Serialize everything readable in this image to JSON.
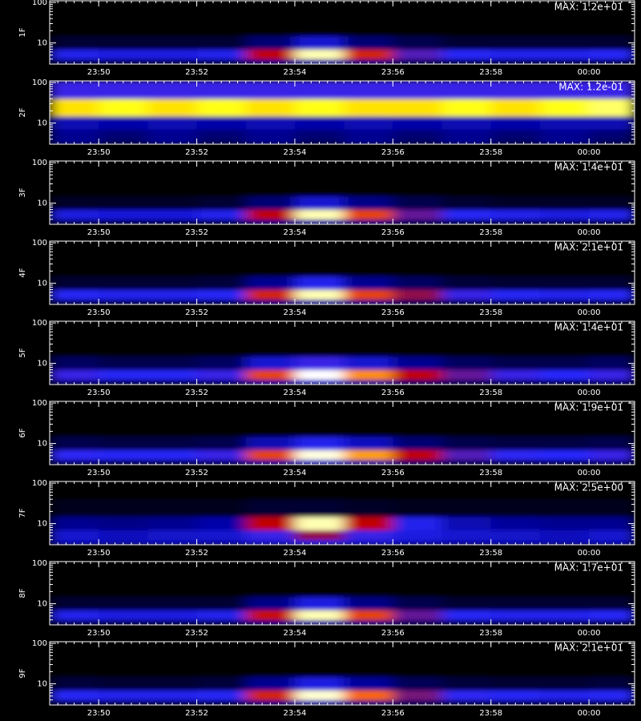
{
  "chart_data": [
    {
      "type": "heatmap",
      "ylabel": "1F",
      "annotation": "MAX: 1.2e+01",
      "xlim": [
        49,
        60.93
      ],
      "ylim": [
        3,
        110
      ],
      "ylog": true,
      "xticks": [
        {
          "value": 50,
          "label": "23:50"
        },
        {
          "value": 52,
          "label": "23:52"
        },
        {
          "value": 54,
          "label": "23:54"
        },
        {
          "value": 56,
          "label": "23:56"
        },
        {
          "value": 58,
          "label": "23:58"
        },
        {
          "value": 60,
          "label": "00:00"
        }
      ],
      "yticks": [
        10,
        100
      ],
      "xbins": [
        49,
        50,
        51,
        52,
        53,
        54,
        55,
        56,
        57,
        58,
        59,
        60,
        60.93
      ],
      "ybins": [
        3,
        4,
        7,
        15,
        40,
        110
      ],
      "colorscale": [
        "#000000",
        "#0000a0",
        "#2828ff",
        "#c00000",
        "#ff7000",
        "#ffff00",
        "#ffffff"
      ],
      "z": [
        [
          0.1,
          0.1,
          0.1,
          0.1,
          0.15,
          0.2,
          0.15,
          0.1,
          0.1,
          0.1,
          0.1,
          0.1
        ],
        [
          0.3,
          0.28,
          0.28,
          0.3,
          0.5,
          0.95,
          0.55,
          0.38,
          0.32,
          0.3,
          0.3,
          0.32
        ],
        [
          0.05,
          0.05,
          0.05,
          0.05,
          0.12,
          0.25,
          0.12,
          0.08,
          0.05,
          0.05,
          0.05,
          0.05
        ],
        [
          0,
          0,
          0,
          0,
          0,
          0,
          0,
          0,
          0,
          0,
          0,
          0
        ],
        [
          0,
          0,
          0,
          0,
          0,
          0,
          0,
          0,
          0,
          0,
          0,
          0
        ]
      ]
    },
    {
      "type": "heatmap",
      "ylabel": "2F",
      "annotation": "MAX: 1.2e-01",
      "xlim": [
        49,
        60.93
      ],
      "ylim": [
        3,
        110
      ],
      "ylog": true,
      "xticks": [
        {
          "value": 50,
          "label": "23:50"
        },
        {
          "value": 52,
          "label": "23:52"
        },
        {
          "value": 54,
          "label": "23:54"
        },
        {
          "value": 56,
          "label": "23:56"
        },
        {
          "value": 58,
          "label": "23:58"
        },
        {
          "value": 60,
          "label": "00:00"
        }
      ],
      "yticks": [
        10,
        100
      ],
      "xbins": [
        49,
        50,
        51,
        52,
        53,
        54,
        55,
        56,
        57,
        58,
        59,
        60,
        60.93
      ],
      "ybins": [
        3,
        4,
        7,
        15,
        40,
        110
      ],
      "colorscale": [
        "#000000",
        "#0000a0",
        "#2828ff",
        "#c00000",
        "#ff7000",
        "#ffff00",
        "#ffffff"
      ],
      "z": [
        [
          0.15,
          0.1,
          0.15,
          0.1,
          0.15,
          0.1,
          0.15,
          0.1,
          0.15,
          0.1,
          0.15,
          0.1
        ],
        [
          0.15,
          0.12,
          0.15,
          0.12,
          0.15,
          0.12,
          0.15,
          0.12,
          0.15,
          0.12,
          0.15,
          0.12
        ],
        [
          0.2,
          0.18,
          0.2,
          0.18,
          0.2,
          0.18,
          0.2,
          0.18,
          0.2,
          0.18,
          0.2,
          0.2
        ],
        [
          0.8,
          0.85,
          0.8,
          0.85,
          0.8,
          0.85,
          0.8,
          0.8,
          0.85,
          0.8,
          0.85,
          0.9
        ],
        [
          0.35,
          0.35,
          0.35,
          0.35,
          0.35,
          0.35,
          0.35,
          0.35,
          0.35,
          0.35,
          0.35,
          0.35
        ]
      ]
    },
    {
      "type": "heatmap",
      "ylabel": "3F",
      "annotation": "MAX: 1.4e+01",
      "xlim": [
        49,
        60.93
      ],
      "ylim": [
        3,
        110
      ],
      "ylog": true,
      "xticks": [
        {
          "value": 50,
          "label": "23:50"
        },
        {
          "value": 52,
          "label": "23:52"
        },
        {
          "value": 54,
          "label": "23:54"
        },
        {
          "value": 56,
          "label": "23:56"
        },
        {
          "value": 58,
          "label": "23:58"
        },
        {
          "value": 60,
          "label": "00:00"
        }
      ],
      "yticks": [
        10,
        100
      ],
      "xbins": [
        49,
        50,
        51,
        52,
        53,
        54,
        55,
        56,
        57,
        58,
        59,
        60,
        60.93
      ],
      "ybins": [
        3,
        4,
        7,
        15,
        40,
        110
      ],
      "colorscale": [
        "#000000",
        "#0000a0",
        "#2828ff",
        "#c00000",
        "#ff7000",
        "#ffff00",
        "#ffffff"
      ],
      "z": [
        [
          0.1,
          0.1,
          0.1,
          0.1,
          0.15,
          0.2,
          0.15,
          0.1,
          0.1,
          0.1,
          0.1,
          0.1
        ],
        [
          0.28,
          0.27,
          0.27,
          0.3,
          0.5,
          0.95,
          0.6,
          0.4,
          0.32,
          0.3,
          0.28,
          0.3
        ],
        [
          0.04,
          0.04,
          0.04,
          0.05,
          0.12,
          0.25,
          0.14,
          0.08,
          0.05,
          0.04,
          0.04,
          0.04
        ],
        [
          0,
          0,
          0,
          0,
          0,
          0,
          0,
          0,
          0,
          0,
          0,
          0
        ],
        [
          0,
          0,
          0,
          0,
          0,
          0,
          0,
          0,
          0,
          0,
          0,
          0
        ]
      ]
    },
    {
      "type": "heatmap",
      "ylabel": "4F",
      "annotation": "MAX: 2.1e+01",
      "xlim": [
        49,
        60.93
      ],
      "ylim": [
        3,
        110
      ],
      "ylog": true,
      "xticks": [
        {
          "value": 50,
          "label": "23:50"
        },
        {
          "value": 52,
          "label": "23:52"
        },
        {
          "value": 54,
          "label": "23:54"
        },
        {
          "value": 56,
          "label": "23:56"
        },
        {
          "value": 58,
          "label": "23:58"
        },
        {
          "value": 60,
          "label": "00:00"
        }
      ],
      "yticks": [
        10,
        100
      ],
      "xbins": [
        49,
        50,
        51,
        52,
        53,
        54,
        55,
        56,
        57,
        58,
        59,
        60,
        60.93
      ],
      "ybins": [
        3,
        4,
        7,
        15,
        40,
        110
      ],
      "colorscale": [
        "#000000",
        "#0000a0",
        "#2828ff",
        "#c00000",
        "#ff7000",
        "#ffff00",
        "#ffffff"
      ],
      "z": [
        [
          0.1,
          0.1,
          0.1,
          0.1,
          0.15,
          0.2,
          0.15,
          0.1,
          0.1,
          0.1,
          0.1,
          0.1
        ],
        [
          0.32,
          0.3,
          0.3,
          0.32,
          0.55,
          0.95,
          0.6,
          0.45,
          0.35,
          0.32,
          0.3,
          0.32
        ],
        [
          0.05,
          0.05,
          0.05,
          0.06,
          0.15,
          0.3,
          0.15,
          0.1,
          0.06,
          0.05,
          0.05,
          0.05
        ],
        [
          0,
          0,
          0,
          0,
          0,
          0,
          0,
          0,
          0,
          0,
          0,
          0
        ],
        [
          0,
          0,
          0,
          0,
          0,
          0,
          0,
          0,
          0,
          0,
          0,
          0
        ]
      ]
    },
    {
      "type": "heatmap",
      "ylabel": "5F",
      "annotation": "MAX: 1.4e+01",
      "xlim": [
        49,
        60.93
      ],
      "ylim": [
        3,
        110
      ],
      "ylog": true,
      "xticks": [
        {
          "value": 50,
          "label": "23:50"
        },
        {
          "value": 52,
          "label": "23:52"
        },
        {
          "value": 54,
          "label": "23:54"
        },
        {
          "value": 56,
          "label": "23:56"
        },
        {
          "value": 58,
          "label": "23:58"
        },
        {
          "value": 60,
          "label": "00:00"
        }
      ],
      "yticks": [
        10,
        100
      ],
      "xbins": [
        49,
        50,
        51,
        52,
        53,
        54,
        55,
        56,
        57,
        58,
        59,
        60,
        60.93
      ],
      "ybins": [
        3,
        4,
        7,
        15,
        40,
        110
      ],
      "colorscale": [
        "#000000",
        "#0000a0",
        "#2828ff",
        "#c00000",
        "#ff7000",
        "#ffff00",
        "#ffffff"
      ],
      "z": [
        [
          0.12,
          0.1,
          0.1,
          0.12,
          0.18,
          0.25,
          0.18,
          0.12,
          0.1,
          0.1,
          0.1,
          0.12
        ],
        [
          0.35,
          0.32,
          0.32,
          0.35,
          0.6,
          1,
          0.7,
          0.5,
          0.4,
          0.35,
          0.33,
          0.35
        ],
        [
          0.1,
          0.08,
          0.08,
          0.1,
          0.25,
          0.35,
          0.25,
          0.15,
          0.1,
          0.08,
          0.08,
          0.1
        ],
        [
          0,
          0,
          0,
          0,
          0,
          0,
          0,
          0,
          0,
          0,
          0,
          0
        ],
        [
          0,
          0,
          0,
          0,
          0,
          0,
          0,
          0,
          0,
          0,
          0,
          0
        ]
      ]
    },
    {
      "type": "heatmap",
      "ylabel": "6F",
      "annotation": "MAX: 1.9e+01",
      "xlim": [
        49,
        60.93
      ],
      "ylim": [
        3,
        110
      ],
      "ylog": true,
      "xticks": [
        {
          "value": 50,
          "label": "23:50"
        },
        {
          "value": 52,
          "label": "23:52"
        },
        {
          "value": 54,
          "label": "23:54"
        },
        {
          "value": 56,
          "label": "23:56"
        },
        {
          "value": 58,
          "label": "23:58"
        },
        {
          "value": 60,
          "label": "00:00"
        }
      ],
      "yticks": [
        10,
        100
      ],
      "xbins": [
        49,
        50,
        51,
        52,
        53,
        54,
        55,
        56,
        57,
        58,
        59,
        60,
        60.93
      ],
      "ybins": [
        3,
        4,
        7,
        15,
        40,
        110
      ],
      "colorscale": [
        "#000000",
        "#0000a0",
        "#2828ff",
        "#c00000",
        "#ff7000",
        "#ffff00",
        "#ffffff"
      ],
      "z": [
        [
          0.12,
          0.1,
          0.1,
          0.12,
          0.18,
          0.25,
          0.2,
          0.12,
          0.1,
          0.1,
          0.1,
          0.12
        ],
        [
          0.34,
          0.32,
          0.32,
          0.35,
          0.6,
          0.98,
          0.72,
          0.5,
          0.38,
          0.34,
          0.33,
          0.35
        ],
        [
          0.08,
          0.07,
          0.07,
          0.08,
          0.2,
          0.3,
          0.22,
          0.12,
          0.08,
          0.07,
          0.07,
          0.08
        ],
        [
          0,
          0,
          0,
          0,
          0,
          0,
          0,
          0,
          0,
          0,
          0,
          0
        ],
        [
          0,
          0,
          0,
          0,
          0,
          0,
          0,
          0,
          0,
          0,
          0,
          0
        ]
      ]
    },
    {
      "type": "heatmap",
      "ylabel": "7F",
      "annotation": "MAX: 2.5e+00",
      "xlim": [
        49,
        60.93
      ],
      "ylim": [
        3,
        110
      ],
      "ylog": true,
      "xticks": [
        {
          "value": 50,
          "label": "23:50"
        },
        {
          "value": 52,
          "label": "23:52"
        },
        {
          "value": 54,
          "label": "23:54"
        },
        {
          "value": 56,
          "label": "23:56"
        },
        {
          "value": 58,
          "label": "23:58"
        },
        {
          "value": 60,
          "label": "00:00"
        }
      ],
      "yticks": [
        10,
        100
      ],
      "xbins": [
        49,
        50,
        51,
        52,
        53,
        54,
        55,
        56,
        57,
        58,
        59,
        60,
        60.93
      ],
      "ybins": [
        3,
        4,
        7,
        15,
        40,
        110
      ],
      "colorscale": [
        "#000000",
        "#0000a0",
        "#2828ff",
        "#c00000",
        "#ff7000",
        "#ffff00",
        "#ffffff"
      ],
      "z": [
        [
          0.22,
          0.2,
          0.22,
          0.2,
          0.25,
          0.3,
          0.25,
          0.22,
          0.2,
          0.22,
          0.2,
          0.22
        ],
        [
          0.25,
          0.22,
          0.24,
          0.25,
          0.35,
          0.45,
          0.35,
          0.28,
          0.25,
          0.24,
          0.22,
          0.25
        ],
        [
          0.15,
          0.14,
          0.15,
          0.18,
          0.5,
          0.95,
          0.5,
          0.3,
          0.2,
          0.16,
          0.15,
          0.15
        ],
        [
          0.03,
          0.03,
          0.03,
          0.03,
          0.05,
          0.05,
          0.04,
          0.03,
          0.03,
          0.03,
          0.03,
          0.03
        ],
        [
          0,
          0,
          0,
          0,
          0,
          0,
          0,
          0,
          0,
          0,
          0,
          0
        ]
      ]
    },
    {
      "type": "heatmap",
      "ylabel": "8F",
      "annotation": "MAX: 1.7e+01",
      "xlim": [
        49,
        60.93
      ],
      "ylim": [
        3,
        110
      ],
      "ylog": true,
      "xticks": [
        {
          "value": 50,
          "label": "23:50"
        },
        {
          "value": 52,
          "label": "23:52"
        },
        {
          "value": 54,
          "label": "23:54"
        },
        {
          "value": 56,
          "label": "23:56"
        },
        {
          "value": 58,
          "label": "23:58"
        },
        {
          "value": 60,
          "label": "00:00"
        }
      ],
      "yticks": [
        10,
        100
      ],
      "xbins": [
        49,
        50,
        51,
        52,
        53,
        54,
        55,
        56,
        57,
        58,
        59,
        60,
        60.93
      ],
      "ybins": [
        3,
        4,
        7,
        15,
        40,
        110
      ],
      "colorscale": [
        "#000000",
        "#0000a0",
        "#2828ff",
        "#c00000",
        "#ff7000",
        "#ffff00",
        "#ffffff"
      ],
      "z": [
        [
          0.1,
          0.1,
          0.1,
          0.1,
          0.15,
          0.2,
          0.15,
          0.1,
          0.1,
          0.1,
          0.1,
          0.1
        ],
        [
          0.3,
          0.28,
          0.28,
          0.3,
          0.52,
          0.95,
          0.6,
          0.4,
          0.32,
          0.3,
          0.3,
          0.32
        ],
        [
          0.05,
          0.05,
          0.05,
          0.05,
          0.14,
          0.28,
          0.14,
          0.08,
          0.05,
          0.05,
          0.05,
          0.05
        ],
        [
          0,
          0,
          0,
          0,
          0,
          0,
          0,
          0,
          0,
          0,
          0,
          0
        ],
        [
          0,
          0,
          0,
          0,
          0,
          0,
          0,
          0,
          0,
          0,
          0,
          0
        ]
      ]
    },
    {
      "type": "heatmap",
      "ylabel": "9F",
      "annotation": "MAX: 2.1e+01",
      "xlim": [
        49,
        60.93
      ],
      "ylim": [
        3,
        110
      ],
      "ylog": true,
      "xticks": [
        {
          "value": 50,
          "label": "23:50"
        },
        {
          "value": 52,
          "label": "23:52"
        },
        {
          "value": 54,
          "label": "23:54"
        },
        {
          "value": 56,
          "label": "23:56"
        },
        {
          "value": 58,
          "label": "23:58"
        },
        {
          "value": 60,
          "label": "00:00"
        }
      ],
      "yticks": [
        10,
        100
      ],
      "xbins": [
        49,
        50,
        51,
        52,
        53,
        54,
        55,
        56,
        57,
        58,
        59,
        60,
        60.93
      ],
      "ybins": [
        3,
        4,
        7,
        15,
        40,
        110
      ],
      "colorscale": [
        "#000000",
        "#0000a0",
        "#2828ff",
        "#c00000",
        "#ff7000",
        "#ffff00",
        "#ffffff"
      ],
      "z": [
        [
          0.1,
          0.1,
          0.1,
          0.1,
          0.15,
          0.22,
          0.15,
          0.1,
          0.1,
          0.1,
          0.1,
          0.1
        ],
        [
          0.32,
          0.3,
          0.3,
          0.32,
          0.55,
          0.97,
          0.65,
          0.42,
          0.34,
          0.32,
          0.3,
          0.32
        ],
        [
          0.06,
          0.05,
          0.05,
          0.06,
          0.15,
          0.28,
          0.16,
          0.09,
          0.06,
          0.05,
          0.05,
          0.06
        ],
        [
          0,
          0,
          0,
          0,
          0,
          0,
          0,
          0,
          0,
          0,
          0,
          0
        ],
        [
          0,
          0,
          0,
          0,
          0,
          0,
          0,
          0,
          0,
          0,
          0,
          0
        ]
      ]
    }
  ]
}
